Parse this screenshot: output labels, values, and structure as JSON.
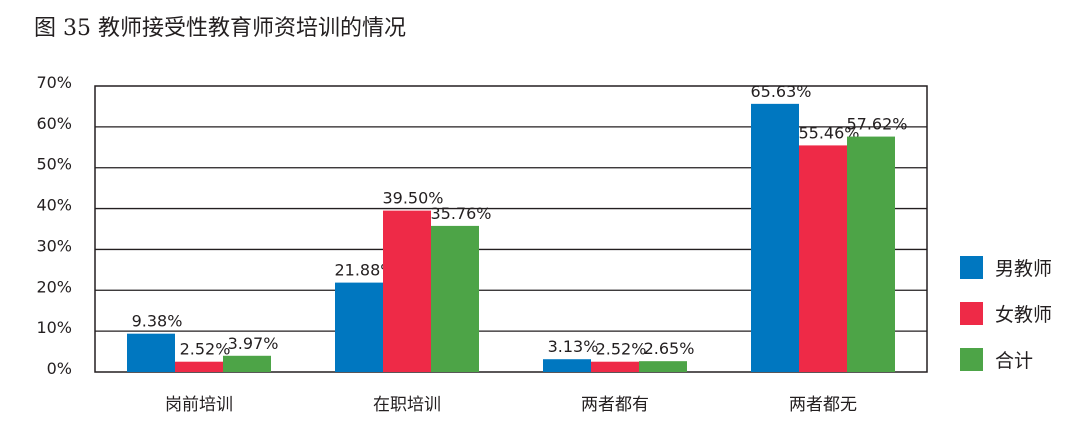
{
  "chart_data": {
    "type": "bar",
    "title": "图 35 教师接受性教育师资培训的情况",
    "xlabel": "",
    "ylabel": "",
    "categories": [
      "岗前培训",
      "在职培训",
      "两者都有",
      "两者都无"
    ],
    "series": [
      {
        "name": "男教师",
        "color": "#0077c0",
        "values": [
          9.38,
          21.88,
          3.13,
          65.63
        ],
        "labels": [
          "9.38%",
          "21.88%",
          "3.13%",
          "65.63%"
        ]
      },
      {
        "name": "女教师",
        "color": "#ee2a47",
        "values": [
          2.52,
          39.5,
          2.52,
          55.46
        ],
        "labels": [
          "2.52%",
          "39.50%",
          "2.52%",
          "55.46%"
        ]
      },
      {
        "name": "合计",
        "color": "#4da447",
        "values": [
          3.97,
          35.76,
          2.65,
          57.62
        ],
        "labels": [
          "3.97%",
          "35.76%",
          "2.65%",
          "57.62%"
        ]
      }
    ],
    "ylim": [
      0,
      70
    ],
    "yticks": [
      "0%",
      "10%",
      "20%",
      "30%",
      "40%",
      "50%",
      "60%",
      "70%"
    ],
    "grid": true,
    "legend": "right"
  }
}
